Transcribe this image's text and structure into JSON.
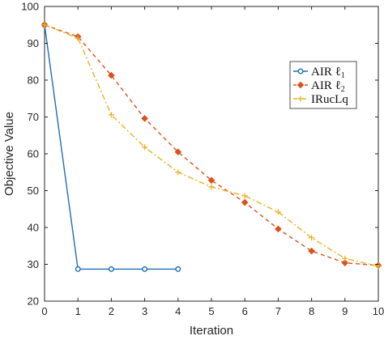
{
  "chart_data": {
    "type": "line",
    "xlabel": "Iteration",
    "ylabel": "Objective Value",
    "xlim": [
      0,
      10
    ],
    "ylim": [
      20,
      100
    ],
    "xticks": [
      "0",
      "1",
      "2",
      "3",
      "4",
      "5",
      "6",
      "7",
      "8",
      "9",
      "10"
    ],
    "yticks": [
      "20",
      "30",
      "40",
      "50",
      "60",
      "70",
      "80",
      "90",
      "100"
    ],
    "grid": false,
    "legend_position": "right",
    "series": [
      {
        "name_main": "AIR ℓ",
        "name_sub": "1",
        "color": "#1f6fb4",
        "line": "solid",
        "marker": "circle",
        "x": [
          0,
          1,
          2,
          3,
          4
        ],
        "y": [
          95,
          28.7,
          28.7,
          28.7,
          28.7
        ]
      },
      {
        "name_main": "AIR ℓ",
        "name_sub": "2",
        "color": "#d9531e",
        "line": "dashed",
        "marker": "diamond",
        "x": [
          0,
          1,
          2,
          3,
          4,
          5,
          6,
          7,
          8,
          9,
          10
        ],
        "y": [
          95,
          91.8,
          81.3,
          69.6,
          60.5,
          52.8,
          46.8,
          39.6,
          33.6,
          30.4,
          29.7
        ]
      },
      {
        "name_main": "IRucLq",
        "name_sub": "",
        "color": "#edb120",
        "line": "dashdot",
        "marker": "plus",
        "x": [
          0,
          1,
          2,
          3,
          4,
          5,
          6,
          7,
          8,
          9,
          10
        ],
        "y": [
          95,
          91.4,
          70.6,
          61.8,
          55.0,
          51.0,
          48.6,
          44.2,
          37.2,
          31.6,
          29.5
        ]
      }
    ]
  }
}
